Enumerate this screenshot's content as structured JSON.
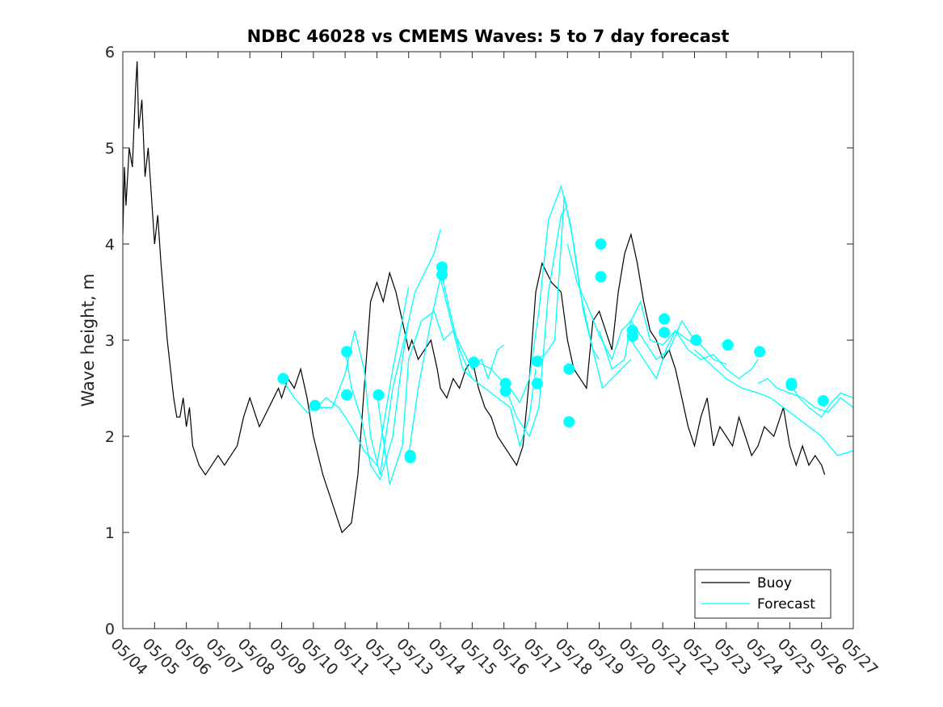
{
  "chart_data": {
    "type": "line",
    "title": "NDBC 46028 vs CMEMS Waves: 5 to 7 day forecast",
    "ylabel": "Wave height, m",
    "xlabel": "",
    "x_domain_days": [
      0,
      23
    ],
    "xticks": [
      "05/04",
      "05/05",
      "05/06",
      "05/07",
      "05/08",
      "05/09",
      "05/10",
      "05/11",
      "05/12",
      "05/13",
      "05/14",
      "05/15",
      "05/16",
      "05/17",
      "05/18",
      "05/19",
      "05/20",
      "05/21",
      "05/22",
      "05/23",
      "05/24",
      "05/25",
      "05/26",
      "05/27"
    ],
    "ylim": [
      0,
      6
    ],
    "yticks": [
      "0",
      "1",
      "2",
      "3",
      "4",
      "5",
      "6"
    ],
    "legend": {
      "position": "bottom-right",
      "entries": [
        "Buoy",
        "Forecast"
      ]
    },
    "colors": {
      "buoy": "#000000",
      "forecast": "#00ffff",
      "marker": "#00ffff",
      "axes": "#262626"
    },
    "grid": false,
    "series": [
      {
        "name": "Buoy",
        "x": [
          0.0,
          0.05,
          0.1,
          0.2,
          0.3,
          0.4,
          0.45,
          0.5,
          0.6,
          0.7,
          0.8,
          0.9,
          1.0,
          1.1,
          1.2,
          1.3,
          1.4,
          1.5,
          1.6,
          1.7,
          1.8,
          1.9,
          2.0,
          2.1,
          2.2,
          2.3,
          2.4,
          2.6,
          2.8,
          3.0,
          3.2,
          3.4,
          3.6,
          3.8,
          4.0,
          4.3,
          4.6,
          4.9,
          5.0,
          5.2,
          5.4,
          5.6,
          5.8,
          6.0,
          6.3,
          6.6,
          6.9,
          7.2,
          7.4,
          7.6,
          7.8,
          8.0,
          8.2,
          8.4,
          8.6,
          8.8,
          9.0,
          9.1,
          9.3,
          9.5,
          9.7,
          9.9,
          10.0,
          10.2,
          10.4,
          10.6,
          10.8,
          11.0,
          11.2,
          11.4,
          11.6,
          11.8,
          12.0,
          12.2,
          12.4,
          12.6,
          12.8,
          13.0,
          13.2,
          13.5,
          13.8,
          14.0,
          14.2,
          14.4,
          14.6,
          14.8,
          15.0,
          15.2,
          15.4,
          15.6,
          15.8,
          16.0,
          16.2,
          16.4,
          16.6,
          16.8,
          17.0,
          17.2,
          17.4,
          17.6,
          17.8,
          18.0,
          18.2,
          18.4,
          18.6,
          18.8,
          19.0,
          19.2,
          19.4,
          19.6,
          19.8,
          20.0,
          20.2,
          20.5,
          20.8,
          21.0,
          21.2,
          21.4,
          21.6,
          21.8,
          22.0,
          22.1
        ],
        "values": [
          4.1,
          4.8,
          4.4,
          5.0,
          4.8,
          5.6,
          5.9,
          5.2,
          5.5,
          4.7,
          5.0,
          4.5,
          4.0,
          4.3,
          3.8,
          3.4,
          3.0,
          2.7,
          2.4,
          2.2,
          2.2,
          2.4,
          2.1,
          2.3,
          1.9,
          1.8,
          1.7,
          1.6,
          1.7,
          1.8,
          1.7,
          1.8,
          1.9,
          2.2,
          2.4,
          2.1,
          2.3,
          2.5,
          2.4,
          2.6,
          2.5,
          2.7,
          2.4,
          2.0,
          1.6,
          1.3,
          1.0,
          1.1,
          1.6,
          2.5,
          3.4,
          3.6,
          3.4,
          3.7,
          3.5,
          3.2,
          2.9,
          3.0,
          2.8,
          2.9,
          3.0,
          2.7,
          2.5,
          2.4,
          2.6,
          2.5,
          2.7,
          2.8,
          2.5,
          2.3,
          2.2,
          2.0,
          1.9,
          1.8,
          1.7,
          1.9,
          2.6,
          3.5,
          3.8,
          3.6,
          3.5,
          3.0,
          2.7,
          2.6,
          2.5,
          3.2,
          3.3,
          3.1,
          2.9,
          3.5,
          3.9,
          4.1,
          3.8,
          3.4,
          3.1,
          3.0,
          2.8,
          2.9,
          2.7,
          2.4,
          2.1,
          1.9,
          2.2,
          2.4,
          1.9,
          2.1,
          2.0,
          1.9,
          2.2,
          2.0,
          1.8,
          1.9,
          2.1,
          2.0,
          2.3,
          1.9,
          1.7,
          1.9,
          1.7,
          1.8,
          1.7,
          1.6
        ]
      },
      {
        "name": "Forecast",
        "segments": [
          {
            "x": [
              5.0,
              5.4,
              5.8,
              6.1,
              6.4,
              6.8,
              7.2,
              7.6,
              8.0,
              8.5,
              9.0
            ],
            "values": [
              2.6,
              2.4,
              2.25,
              2.3,
              2.4,
              2.3,
              2.1,
              1.85,
              1.7,
              2.7,
              3.55
            ]
          },
          {
            "x": [
              6.0,
              6.2,
              6.6,
              7.0,
              7.3,
              7.6,
              7.8,
              8.1,
              8.5,
              9.0
            ],
            "values": [
              2.35,
              2.3,
              2.3,
              2.65,
              3.1,
              2.7,
              2.0,
              1.6,
              2.5,
              3.2
            ]
          },
          {
            "x": [
              7.0,
              7.2,
              7.5,
              7.8,
              8.1,
              8.5,
              8.8,
              9.0,
              9.2,
              9.5,
              9.8,
              10.0
            ],
            "values": [
              2.9,
              2.5,
              2.2,
              1.7,
              1.55,
              2.0,
              2.8,
              3.2,
              3.5,
              3.7,
              3.9,
              4.15
            ]
          },
          {
            "x": [
              8.0,
              8.4,
              8.8,
              9.0,
              9.4,
              9.8,
              10.1,
              10.4,
              10.7,
              11.0
            ],
            "values": [
              2.45,
              1.5,
              1.9,
              2.8,
              3.2,
              3.3,
              3.0,
              3.1,
              2.7,
              2.6
            ]
          },
          {
            "x": [
              9.0,
              9.3,
              9.7,
              10.0,
              10.4,
              10.7,
              11.0,
              11.3,
              11.5,
              11.8,
              12.0
            ],
            "values": [
              1.8,
              2.5,
              3.2,
              3.65,
              3.1,
              2.9,
              2.7,
              2.8,
              2.6,
              2.9,
              2.95
            ]
          },
          {
            "x": [
              10.0,
              10.3,
              10.6,
              11.0,
              11.4,
              11.8,
              12.2,
              12.5,
              12.8,
              13.0
            ],
            "values": [
              3.75,
              3.3,
              2.9,
              2.6,
              2.5,
              2.4,
              2.3,
              1.9,
              2.2,
              2.7
            ]
          },
          {
            "x": [
              11.0,
              11.3,
              11.6,
              12.0,
              12.4,
              12.8,
              13.1,
              13.4,
              13.8,
              14.0
            ],
            "values": [
              2.8,
              2.75,
              2.7,
              2.55,
              2.2,
              2.0,
              2.3,
              3.5,
              4.3,
              4.4
            ]
          },
          {
            "x": [
              12.0,
              12.2,
              12.5,
              12.8,
              13.1,
              13.4,
              13.8,
              14.1,
              14.4,
              14.8,
              15.0
            ],
            "values": [
              2.55,
              2.5,
              2.35,
              2.6,
              3.3,
              4.25,
              4.6,
              4.2,
              3.5,
              2.9,
              2.8
            ]
          },
          {
            "x": [
              13.0,
              13.3,
              13.6,
              13.9,
              14.2,
              14.5,
              14.8,
              15.1,
              15.4,
              15.7,
              16.0
            ],
            "values": [
              2.8,
              2.85,
              3.0,
              4.5,
              4.0,
              3.3,
              2.9,
              2.5,
              2.6,
              2.7,
              2.8
            ]
          },
          {
            "x": [
              14.0,
              14.3,
              14.7,
              15.0,
              15.4,
              15.7,
              16.0,
              16.3,
              16.6,
              17.0
            ],
            "values": [
              4.0,
              3.6,
              3.3,
              3.05,
              2.8,
              3.1,
              3.2,
              3.4,
              3.0,
              2.95
            ]
          },
          {
            "x": [
              15.0,
              15.4,
              15.8,
              16.0,
              16.4,
              16.8,
              17.2,
              17.6,
              18.0
            ],
            "values": [
              3.1,
              2.7,
              2.8,
              3.2,
              3.0,
              2.8,
              2.9,
              3.2,
              3.0
            ]
          },
          {
            "x": [
              16.0,
              16.4,
              16.8,
              17.1,
              17.4,
              17.8,
              18.2,
              18.6,
              19.0
            ],
            "values": [
              3.0,
              2.8,
              2.6,
              2.9,
              3.1,
              3.0,
              2.95,
              2.8,
              2.75
            ]
          },
          {
            "x": [
              17.0,
              17.4,
              17.8,
              18.2,
              18.6,
              19.0,
              19.4,
              19.8,
              20.0
            ],
            "values": [
              2.95,
              3.1,
              2.9,
              2.8,
              2.85,
              2.7,
              2.6,
              2.7,
              2.8
            ]
          },
          {
            "x": [
              18.0,
              18.5,
              19.0,
              19.5,
              20.0,
              20.4,
              20.8,
              21.2,
              21.6,
              22.0,
              22.5,
              23.0
            ],
            "values": [
              2.9,
              2.75,
              2.6,
              2.5,
              2.45,
              2.4,
              2.3,
              2.2,
              2.1,
              2.0,
              1.8,
              1.85
            ]
          },
          {
            "x": [
              20.0,
              20.3,
              20.6,
              21.0,
              21.4,
              21.8,
              22.2,
              22.6,
              23.0
            ],
            "values": [
              2.55,
              2.6,
              2.5,
              2.45,
              2.4,
              2.3,
              2.25,
              2.4,
              2.3
            ]
          },
          {
            "x": [
              21.0,
              21.3,
              21.6,
              22.0,
              22.3,
              22.6,
              23.0
            ],
            "values": [
              2.55,
              2.4,
              2.3,
              2.2,
              2.35,
              2.45,
              2.4
            ]
          }
        ]
      }
    ],
    "markers": {
      "x": [
        5.05,
        6.05,
        7.05,
        7.05,
        8.05,
        9.05,
        9.05,
        10.05,
        10.05,
        11.05,
        12.05,
        12.05,
        13.05,
        13.05,
        14.05,
        14.05,
        15.05,
        15.05,
        16.05,
        16.05,
        17.05,
        17.05,
        18.05,
        19.05,
        20.05,
        21.05,
        21.05,
        22.05
      ],
      "values": [
        2.6,
        2.32,
        2.88,
        2.43,
        2.43,
        1.8,
        1.78,
        3.76,
        3.68,
        2.77,
        2.55,
        2.47,
        2.78,
        2.55,
        2.7,
        2.15,
        4.0,
        3.66,
        3.1,
        3.04,
        3.22,
        3.08,
        3.0,
        2.95,
        2.88,
        2.55,
        2.53,
        2.37
      ]
    }
  }
}
